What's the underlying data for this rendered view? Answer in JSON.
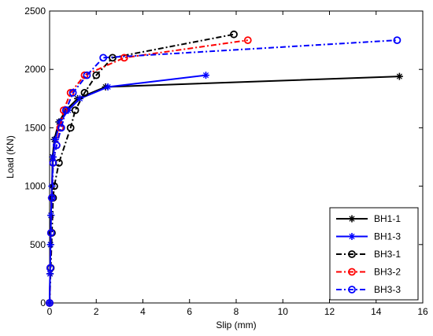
{
  "chart_data": {
    "type": "line",
    "title": "",
    "xlabel": "Slip (mm)",
    "ylabel": "Load (KN)",
    "xlim": [
      0,
      16
    ],
    "ylim": [
      0,
      2500
    ],
    "xticks": [
      "0",
      "2",
      "4",
      "6",
      "8",
      "10",
      "12",
      "14",
      "16"
    ],
    "yticks": [
      "0",
      "500",
      "1000",
      "1500",
      "2000",
      "2500"
    ],
    "grid": false,
    "legend_position": "bottom-right",
    "series": [
      {
        "name": "BH1-1",
        "color": "#000000",
        "dash": "solid",
        "marker": "star",
        "x": [
          0,
          0.02,
          0.04,
          0.06,
          0.08,
          0.1,
          0.13,
          0.2,
          0.4,
          0.7,
          1.2,
          2.4,
          15.0
        ],
        "y": [
          0,
          250,
          500,
          750,
          900,
          1000,
          1250,
          1400,
          1550,
          1650,
          1750,
          1850,
          1940
        ]
      },
      {
        "name": "BH1-3",
        "color": "#0000ff",
        "dash": "solid",
        "marker": "star",
        "x": [
          0,
          0.02,
          0.04,
          0.06,
          0.08,
          0.1,
          0.15,
          0.25,
          0.45,
          0.8,
          1.3,
          2.5,
          6.7
        ],
        "y": [
          0,
          250,
          500,
          750,
          900,
          1000,
          1250,
          1400,
          1550,
          1650,
          1750,
          1850,
          1950
        ]
      },
      {
        "name": "BH3-1",
        "color": "#000000",
        "dash": "dashdot",
        "marker": "circle",
        "x": [
          0,
          0.05,
          0.1,
          0.15,
          0.2,
          0.4,
          0.9,
          1.1,
          1.5,
          2.0,
          2.7,
          7.9
        ],
        "y": [
          0,
          300,
          600,
          900,
          1000,
          1200,
          1500,
          1650,
          1800,
          1950,
          2100,
          2300
        ]
      },
      {
        "name": "BH3-2",
        "color": "#ff0000",
        "dash": "dashdot",
        "marker": "circle",
        "x": [
          0,
          0.03,
          0.06,
          0.1,
          0.15,
          0.3,
          0.45,
          0.6,
          0.9,
          1.5,
          3.2,
          8.5
        ],
        "y": [
          0,
          300,
          600,
          900,
          1200,
          1350,
          1500,
          1650,
          1800,
          1950,
          2100,
          2250
        ]
      },
      {
        "name": "BH3-3",
        "color": "#0000ff",
        "dash": "dashdot",
        "marker": "circle",
        "x": [
          0,
          0.03,
          0.06,
          0.1,
          0.15,
          0.3,
          0.5,
          0.7,
          1.0,
          1.6,
          2.3,
          14.9
        ],
        "y": [
          0,
          300,
          600,
          900,
          1200,
          1350,
          1500,
          1650,
          1800,
          1950,
          2100,
          2250
        ]
      }
    ]
  }
}
